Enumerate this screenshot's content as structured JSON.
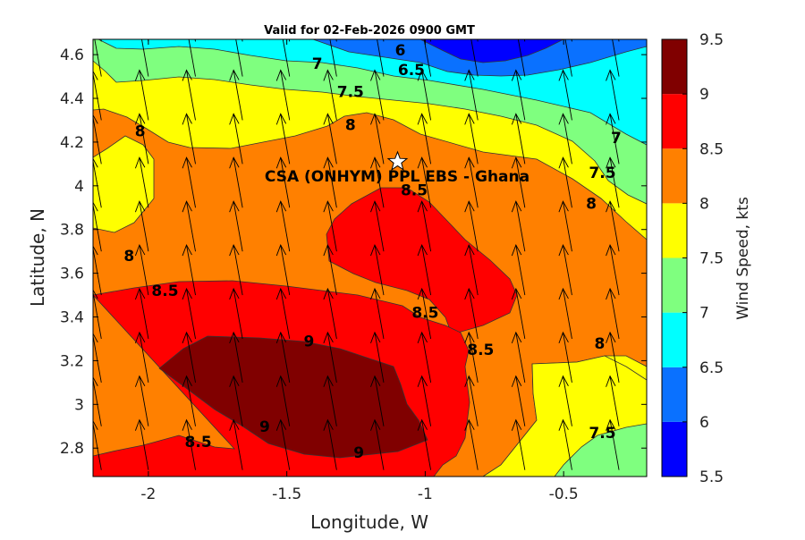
{
  "chart_data": {
    "type": "filled-contour",
    "title": "Valid for 02-Feb-2026 0900 GMT",
    "xlabel": "Longitude, W",
    "ylabel": "Latitude, N",
    "xlim": [
      -2.2,
      -0.2
    ],
    "ylim": [
      2.67,
      4.67
    ],
    "xticks": [
      -2,
      -1.5,
      -1,
      -0.5
    ],
    "xtick_labels": [
      "-2",
      "-1.5",
      "-1",
      "-0.5"
    ],
    "yticks": [
      2.8,
      3.0,
      3.2,
      3.4,
      3.6,
      3.8,
      4.0,
      4.2,
      4.4,
      4.6
    ],
    "ytick_labels": [
      "2.8",
      "3",
      "3.2",
      "3.4",
      "3.6",
      "3.8",
      "4",
      "4.2",
      "4.4",
      "4.6"
    ],
    "colorbar": {
      "label": "Wind Speed, kts",
      "levels": [
        5.5,
        6,
        6.5,
        7,
        7.5,
        8,
        8.5,
        9,
        9.5
      ],
      "tick_labels": [
        "5.5",
        "6",
        "6.5",
        "7",
        "7.5",
        "8",
        "8.5",
        "9",
        "9.5"
      ],
      "colors": [
        "#0000ff",
        "#0a71ff",
        "#00ffff",
        "#7fff7f",
        "#ffff00",
        "#ff8000",
        "#ff0000",
        "#800000"
      ]
    },
    "contour_labels": [
      {
        "text": "6",
        "lon": -1.09,
        "lat": 4.62
      },
      {
        "text": "6.5",
        "lon": -1.05,
        "lat": 4.53
      },
      {
        "text": "7",
        "lon": -1.39,
        "lat": 4.56
      },
      {
        "text": "7.5",
        "lon": -1.27,
        "lat": 4.43
      },
      {
        "text": "7",
        "lon": -0.31,
        "lat": 4.22
      },
      {
        "text": "7.5",
        "lon": -0.36,
        "lat": 4.06
      },
      {
        "text": "8",
        "lon": -2.03,
        "lat": 4.25
      },
      {
        "text": "8",
        "lon": -1.27,
        "lat": 4.28
      },
      {
        "text": "8",
        "lon": -0.4,
        "lat": 3.92
      },
      {
        "text": "8",
        "lon": -2.07,
        "lat": 3.68
      },
      {
        "text": "8.5",
        "lon": -1.04,
        "lat": 3.98
      },
      {
        "text": "8.5",
        "lon": -1.94,
        "lat": 3.52
      },
      {
        "text": "8.5",
        "lon": -1.0,
        "lat": 3.42
      },
      {
        "text": "8.5",
        "lon": -0.8,
        "lat": 3.25
      },
      {
        "text": "8.5",
        "lon": -1.82,
        "lat": 2.83
      },
      {
        "text": "9",
        "lon": -1.42,
        "lat": 3.29
      },
      {
        "text": "9",
        "lon": -1.58,
        "lat": 2.9
      },
      {
        "text": "9",
        "lon": -1.24,
        "lat": 2.78
      },
      {
        "text": "8",
        "lon": -0.37,
        "lat": 3.28
      },
      {
        "text": "7.5",
        "lon": -0.36,
        "lat": 2.87
      }
    ],
    "station": {
      "label": "CSA (ONHYM) PPL EBS  - Ghana",
      "lon": -1.1,
      "lat": 4.11
    },
    "wind_vectors": {
      "lon": [
        -2.17,
        -2.0,
        -1.83,
        -1.66,
        -1.49,
        -1.32,
        -1.15,
        -0.98,
        -0.81,
        -0.64,
        -0.47,
        -0.3
      ],
      "lat": [
        2.7,
        2.9,
        3.1,
        3.3,
        3.5,
        3.7,
        3.9,
        4.1,
        4.3,
        4.5,
        4.66
      ],
      "direction": "toward north-north-west",
      "head": "top"
    }
  }
}
